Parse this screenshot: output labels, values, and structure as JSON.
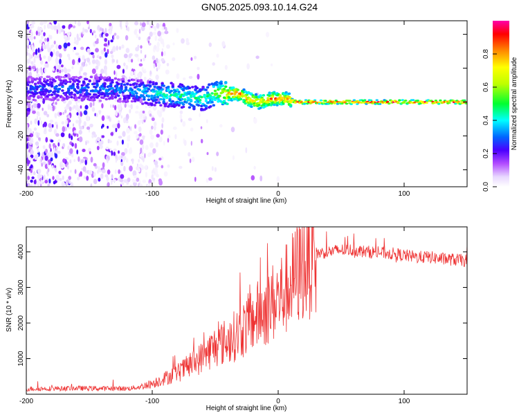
{
  "title": "GN05.2025.093.10.14.G24",
  "chart_data": [
    {
      "type": "heatmap",
      "xlabel": "Height of straight line (km)",
      "ylabel": "Frequency (Hz)",
      "xlim": [
        -200,
        150
      ],
      "ylim": [
        -50,
        48
      ],
      "xticks": [
        "-200",
        "-100",
        "0",
        "100"
      ],
      "yticks": [
        "-40",
        "-20",
        "0",
        "20",
        "40"
      ],
      "ridge": {
        "x": [
          -200,
          -150,
          -120,
          -100,
          -80,
          -60,
          -50,
          -40,
          -30,
          -25,
          -20,
          -15,
          -10,
          -5,
          0,
          5,
          10,
          15,
          50,
          100,
          150
        ],
        "freq": [
          8,
          8,
          7,
          5,
          4,
          2,
          5,
          5,
          5,
          2,
          1,
          0,
          1,
          2,
          2,
          2,
          1,
          0,
          0,
          0,
          0
        ],
        "amplitude": [
          0.3,
          0.35,
          0.35,
          0.45,
          0.5,
          0.5,
          0.6,
          0.85,
          0.9,
          0.85,
          0.85,
          0.8,
          0.85,
          0.9,
          0.9,
          0.9,
          0.9,
          0.95,
          0.95,
          0.95,
          0.95
        ]
      },
      "colorbar": {
        "label": "Normalized spectral amplitude",
        "ticks": [
          "0.0",
          "0.2",
          "0.4",
          "0.6",
          "0.8"
        ],
        "range": [
          0,
          1
        ]
      }
    },
    {
      "type": "line",
      "xlabel": "Height of straight line (km)",
      "ylabel": "SNR (10 * v/v)",
      "xlim": [
        -200,
        150
      ],
      "ylim": [
        0,
        4700
      ],
      "xticks": [
        "-200",
        "-100",
        "0",
        "100"
      ],
      "yticks": [
        "1000",
        "2000",
        "3000",
        "4000"
      ],
      "color": "#ee3333",
      "x": [
        -200,
        -180,
        -160,
        -140,
        -120,
        -110,
        -100,
        -90,
        -80,
        -70,
        -60,
        -50,
        -40,
        -30,
        -20,
        -10,
        0,
        10,
        20,
        30,
        40,
        50,
        60,
        70,
        80,
        90,
        100,
        110,
        120,
        130,
        140,
        150
      ],
      "values": [
        150,
        160,
        170,
        160,
        160,
        200,
        300,
        450,
        600,
        800,
        1050,
        1350,
        1500,
        1750,
        2100,
        2400,
        2700,
        3100,
        3650,
        3950,
        4000,
        4050,
        4050,
        4000,
        3980,
        3950,
        3900,
        3850,
        3850,
        3800,
        3780,
        3750
      ]
    }
  ]
}
